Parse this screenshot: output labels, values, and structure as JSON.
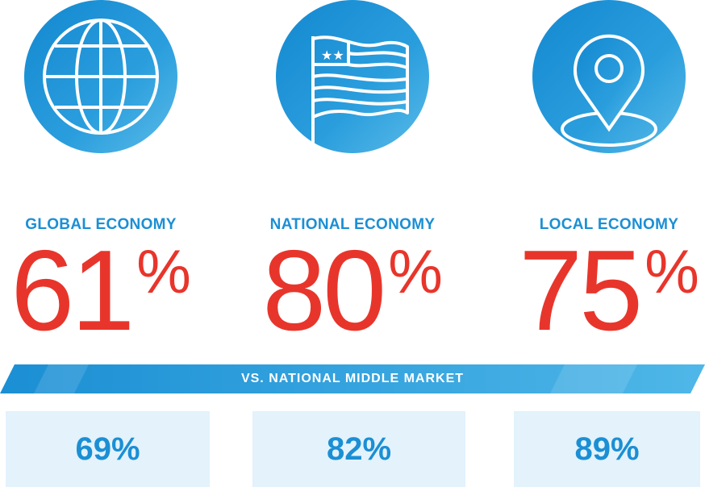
{
  "items": [
    {
      "label": "GLOBAL ECONOMY",
      "value": "61",
      "unit": "%"
    },
    {
      "label": "NATIONAL ECONOMY",
      "value": "80",
      "unit": "%"
    },
    {
      "label": "LOCAL ECONOMY",
      "value": "75",
      "unit": "%"
    }
  ],
  "banner": "VS. NATIONAL MIDDLE MARKET",
  "comparisons": [
    "69%",
    "82%",
    "89%"
  ]
}
